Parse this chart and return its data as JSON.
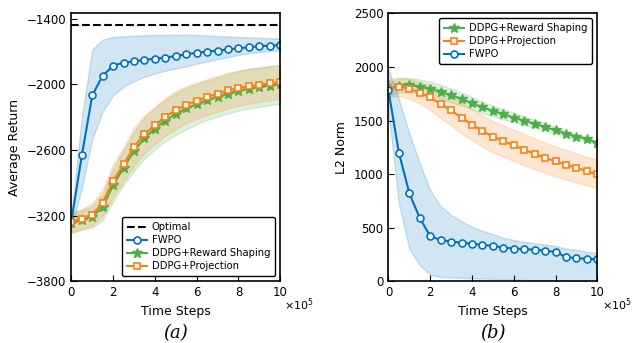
{
  "fig_width": 6.4,
  "fig_height": 3.43,
  "dpi": 100,
  "ax1": {
    "ylabel": "Average Return",
    "xlabel": "Time Steps",
    "label": "(a)",
    "ylim": [
      -3800,
      -1350
    ],
    "xlim": [
      0,
      1000000
    ],
    "yticks": [
      -3800,
      -3200,
      -2600,
      -2000,
      -1400
    ],
    "optimal_y": -1455,
    "fwpo_mean": [
      -3250,
      -2650,
      -2100,
      -1920,
      -1830,
      -1800,
      -1790,
      -1775,
      -1765,
      -1755,
      -1740,
      -1725,
      -1710,
      -1700,
      -1690,
      -1680,
      -1670,
      -1660,
      -1650,
      -1645,
      -1640
    ],
    "fwpo_std_lo": [
      -3310,
      -2950,
      -2500,
      -2250,
      -2100,
      -2020,
      -1970,
      -1930,
      -1900,
      -1875,
      -1855,
      -1835,
      -1810,
      -1790,
      -1770,
      -1750,
      -1730,
      -1715,
      -1705,
      -1695,
      -1688
    ],
    "fwpo_std_hi": [
      -3190,
      -2300,
      -1680,
      -1590,
      -1565,
      -1560,
      -1555,
      -1550,
      -1548,
      -1547,
      -1545,
      -1545,
      -1548,
      -1552,
      -1558,
      -1562,
      -1566,
      -1570,
      -1573,
      -1577,
      -1580
    ],
    "rs_mean": [
      -3270,
      -3240,
      -3210,
      -3120,
      -2920,
      -2760,
      -2610,
      -2490,
      -2405,
      -2330,
      -2270,
      -2220,
      -2180,
      -2145,
      -2115,
      -2085,
      -2060,
      -2040,
      -2025,
      -2010,
      -2000
    ],
    "rs_std_lo": [
      -3360,
      -3330,
      -3310,
      -3240,
      -3070,
      -2920,
      -2790,
      -2680,
      -2595,
      -2520,
      -2460,
      -2410,
      -2365,
      -2325,
      -2295,
      -2265,
      -2240,
      -2220,
      -2205,
      -2190,
      -2178
    ],
    "rs_std_hi": [
      -3180,
      -3150,
      -3110,
      -3000,
      -2770,
      -2600,
      -2430,
      -2300,
      -2215,
      -2140,
      -2080,
      -2030,
      -1995,
      -1965,
      -1935,
      -1905,
      -1880,
      -1860,
      -1845,
      -1830,
      -1822
    ],
    "proj_mean": [
      -3260,
      -3230,
      -3190,
      -3080,
      -2880,
      -2730,
      -2570,
      -2455,
      -2375,
      -2295,
      -2235,
      -2185,
      -2150,
      -2115,
      -2085,
      -2055,
      -2035,
      -2015,
      -2005,
      -1990,
      -1978
    ],
    "proj_std_lo": [
      -3350,
      -3320,
      -3295,
      -3200,
      -3030,
      -2885,
      -2745,
      -2628,
      -2545,
      -2468,
      -2408,
      -2355,
      -2315,
      -2278,
      -2248,
      -2218,
      -2196,
      -2175,
      -2160,
      -2145,
      -2130
    ],
    "proj_std_hi": [
      -3170,
      -3140,
      -3085,
      -2960,
      -2730,
      -2575,
      -2395,
      -2282,
      -2205,
      -2122,
      -2062,
      -2015,
      -1985,
      -1952,
      -1922,
      -1892,
      -1874,
      -1855,
      -1850,
      -1835,
      -1826
    ]
  },
  "ax2": {
    "ylabel": "L2 Norm",
    "xlabel": "Time Steps",
    "label": "(b)",
    "ylim": [
      0,
      2500
    ],
    "xlim": [
      0,
      1000000
    ],
    "yticks": [
      0,
      500,
      1000,
      1500,
      2000,
      2500
    ],
    "fwpo_mean": [
      1780,
      1200,
      820,
      590,
      420,
      385,
      370,
      360,
      350,
      340,
      330,
      315,
      305,
      300,
      295,
      285,
      275,
      225,
      215,
      210,
      205
    ],
    "fwpo_std_lo": [
      1580,
      720,
      300,
      150,
      60,
      40,
      35,
      30,
      28,
      25,
      22,
      18,
      15,
      12,
      10,
      8,
      6,
      5,
      4,
      3,
      2
    ],
    "fwpo_std_hi": [
      1980,
      1700,
      1380,
      1100,
      850,
      700,
      620,
      560,
      510,
      470,
      440,
      405,
      385,
      368,
      355,
      342,
      330,
      305,
      295,
      275,
      265
    ],
    "rs_mean": [
      1790,
      1825,
      1830,
      1815,
      1795,
      1768,
      1735,
      1702,
      1662,
      1622,
      1590,
      1558,
      1528,
      1498,
      1468,
      1438,
      1408,
      1378,
      1350,
      1328,
      1290
    ],
    "rs_std_lo": [
      1725,
      1758,
      1762,
      1748,
      1728,
      1702,
      1672,
      1642,
      1606,
      1568,
      1540,
      1510,
      1484,
      1458,
      1432,
      1406,
      1380,
      1354,
      1330,
      1310,
      1275
    ],
    "rs_std_hi": [
      1855,
      1892,
      1898,
      1882,
      1862,
      1834,
      1798,
      1762,
      1718,
      1676,
      1640,
      1606,
      1572,
      1538,
      1504,
      1470,
      1436,
      1402,
      1370,
      1346,
      1305
    ],
    "proj_mean": [
      1800,
      1815,
      1795,
      1758,
      1715,
      1655,
      1595,
      1525,
      1462,
      1400,
      1350,
      1308,
      1268,
      1228,
      1188,
      1152,
      1118,
      1088,
      1058,
      1028,
      998
    ],
    "proj_std_lo": [
      1720,
      1728,
      1705,
      1655,
      1598,
      1525,
      1455,
      1382,
      1318,
      1255,
      1205,
      1162,
      1122,
      1082,
      1045,
      1010,
      978,
      950,
      922,
      895,
      865
    ],
    "proj_std_hi": [
      1880,
      1902,
      1885,
      1861,
      1832,
      1785,
      1735,
      1668,
      1606,
      1545,
      1495,
      1454,
      1414,
      1374,
      1331,
      1294,
      1258,
      1226,
      1194,
      1161,
      1131
    ]
  },
  "colors": {
    "fwpo": "#0072BD",
    "rs": "#4DAF4A",
    "proj": "#FF7F0E",
    "optimal": "#000000"
  },
  "n_points": 21,
  "x_max": 1000000
}
